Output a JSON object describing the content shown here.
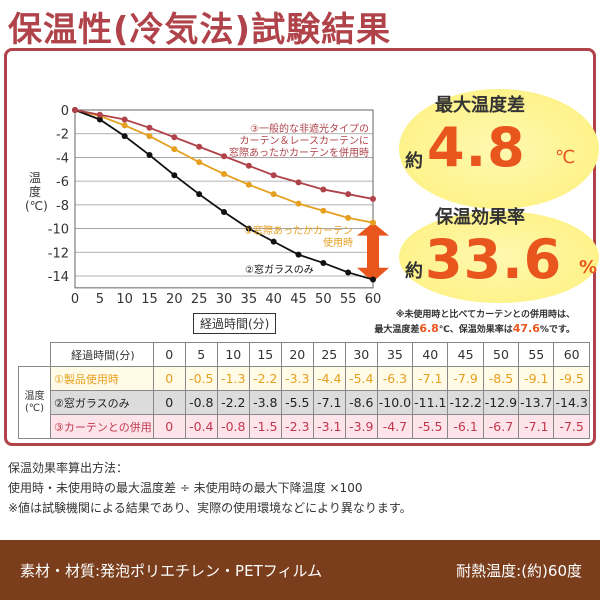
{
  "title": "保温性(冷気法)試験結果",
  "chart_data": {
    "type": "line",
    "title": "",
    "xlabel": "経過時間(分)",
    "ylabel": "温度(℃)",
    "x": [
      0,
      5,
      10,
      15,
      20,
      25,
      30,
      35,
      40,
      45,
      50,
      55,
      60
    ],
    "xlim": [
      0,
      60
    ],
    "ylim": [
      -15,
      0
    ],
    "yticks": [
      0,
      -2,
      -4,
      -6,
      -8,
      -10,
      -12,
      -14
    ],
    "series": [
      {
        "name": "①窓際あったかカーテン使用時",
        "color": "#e6a020",
        "values": [
          0,
          -0.5,
          -1.3,
          -2.2,
          -3.3,
          -4.4,
          -5.4,
          -6.3,
          -7.1,
          -7.9,
          -8.5,
          -9.1,
          -9.5
        ]
      },
      {
        "name": "②窓ガラスのみ",
        "color": "#111111",
        "values": [
          0,
          -0.8,
          -2.2,
          -3.8,
          -5.5,
          -7.1,
          -8.6,
          -10.0,
          -11.1,
          -12.2,
          -12.9,
          -13.7,
          -14.3
        ]
      },
      {
        "name": "③一般的な非遮光タイプのカーテン＆レースカーテンに窓際あったかカーテンを併用時",
        "color": "#b0434a",
        "values": [
          0,
          -0.4,
          -0.8,
          -1.5,
          -2.3,
          -3.1,
          -3.9,
          -4.7,
          -5.5,
          -6.1,
          -6.7,
          -7.1,
          -7.5
        ]
      }
    ],
    "annotations": {
      "s1_line1": "①窓際あったかカーテン",
      "s1_line2": "使用時",
      "s2": "②窓ガラスのみ",
      "s3_line1": "③一般的な非遮光タイプの",
      "s3_line2": "カーテン＆レースカーテンに",
      "s3_line3": "窓際あったかカーテンを併用時"
    }
  },
  "ylabel_short": "温度(℃)",
  "max_diff": {
    "label": "最大温度差",
    "prefix": "約",
    "value": "4.8",
    "unit": "℃"
  },
  "retention": {
    "label": "保温効果率",
    "prefix": "約",
    "value": "33.6",
    "unit": "%"
  },
  "note": {
    "line1": "※未使用時と比べてカーテンとの併用時は、",
    "pre": "最大温度差",
    "v1": "6.8",
    "u1": "℃、保温効果率は",
    "v2": "47.6",
    "u2": "%です。"
  },
  "table": {
    "header": "経過時間(分)",
    "side": "温度(℃)",
    "rows": [
      {
        "label": "①製品使用時",
        "values": [
          "0",
          "-0.5",
          "-1.3",
          "-2.2",
          "-3.3",
          "-4.4",
          "-5.4",
          "-6.3",
          "-7.1",
          "-7.9",
          "-8.5",
          "-9.1",
          "-9.5"
        ]
      },
      {
        "label": "②窓ガラスのみ",
        "values": [
          "0",
          "-0.8",
          "-2.2",
          "-3.8",
          "-5.5",
          "-7.1",
          "-8.6",
          "-10.0",
          "-11.1",
          "-12.2",
          "-12.9",
          "-13.7",
          "-14.3"
        ]
      },
      {
        "label": "③カーテンとの併用",
        "values": [
          "0",
          "-0.4",
          "-0.8",
          "-1.5",
          "-2.3",
          "-3.1",
          "-3.9",
          "-4.7",
          "-5.5",
          "-6.1",
          "-6.7",
          "-7.1",
          "-7.5"
        ]
      }
    ]
  },
  "notes": [
    "保温効果率算出方法：",
    "使用時・未使用時の最大温度差 ÷ 未使用時の最大下降温度 ×100",
    "※値は試験機関による結果であり、実際の使用環境などにより異なります。"
  ],
  "footer": {
    "material": "素材・材質:発泡ポリエチレン・PETフィルム",
    "heat": "耐熱温度:(約)60度"
  }
}
